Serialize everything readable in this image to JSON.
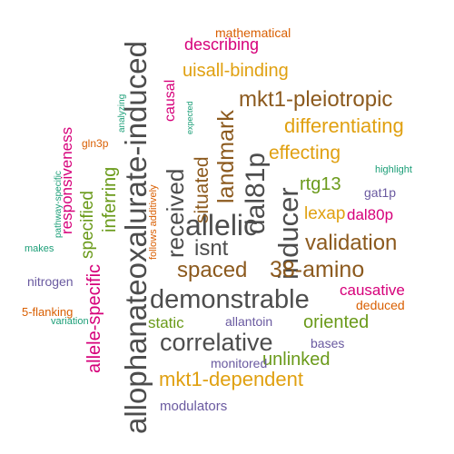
{
  "words": [
    {
      "text": "allophanateoxalurate-induced",
      "color": "#4d4d4d",
      "orientation": "vertical"
    },
    {
      "text": "demonstrable",
      "color": "#4d4d4d",
      "orientation": "horizontal"
    },
    {
      "text": "correlative",
      "color": "#4d4d4d",
      "orientation": "horizontal"
    },
    {
      "text": "inducer",
      "color": "#4d4d4d",
      "orientation": "vertical"
    },
    {
      "text": "allelic",
      "color": "#4d4d4d",
      "orientation": "horizontal"
    },
    {
      "text": "isnt",
      "color": "#4d4d4d",
      "orientation": "horizontal"
    },
    {
      "text": "dal81p",
      "color": "#4d4d4d",
      "orientation": "vertical"
    },
    {
      "text": "received",
      "color": "#4d4d4d",
      "orientation": "vertical"
    },
    {
      "text": "38-amino",
      "color": "#8c5a1e",
      "orientation": "horizontal"
    },
    {
      "text": "landmark",
      "color": "#8c5a1e",
      "orientation": "vertical"
    },
    {
      "text": "spaced",
      "color": "#8c5a1e",
      "orientation": "horizontal"
    },
    {
      "text": "validation",
      "color": "#8c5a1e",
      "orientation": "horizontal"
    },
    {
      "text": "situated",
      "color": "#8c5a1e",
      "orientation": "vertical"
    },
    {
      "text": "mkt1-pleiotropic",
      "color": "#8c5a1e",
      "orientation": "horizontal"
    },
    {
      "text": "mkt1-dependent",
      "color": "#e0a010",
      "orientation": "horizontal"
    },
    {
      "text": "differentiating",
      "color": "#e0a010",
      "orientation": "horizontal"
    },
    {
      "text": "effecting",
      "color": "#e0a010",
      "orientation": "horizontal"
    },
    {
      "text": "uisall-binding",
      "color": "#e0a010",
      "orientation": "horizontal"
    },
    {
      "text": "lexap",
      "color": "#e0a010",
      "orientation": "horizontal"
    },
    {
      "text": "allele-specific",
      "color": "#d6007a",
      "orientation": "vertical"
    },
    {
      "text": "inferring",
      "color": "#6a9a1a",
      "orientation": "vertical"
    },
    {
      "text": "specified",
      "color": "#6a9a1a",
      "orientation": "vertical"
    },
    {
      "text": "responsiveness",
      "color": "#d6007a",
      "orientation": "vertical"
    },
    {
      "text": "causal",
      "color": "#d6007a",
      "orientation": "vertical"
    },
    {
      "text": "describing",
      "color": "#d6007a",
      "orientation": "horizontal"
    },
    {
      "text": "causative",
      "color": "#d6007a",
      "orientation": "horizontal"
    },
    {
      "text": "dal80p",
      "color": "#d6007a",
      "orientation": "horizontal"
    },
    {
      "text": "oriented",
      "color": "#6a9a1a",
      "orientation": "horizontal"
    },
    {
      "text": "unlinked",
      "color": "#6a9a1a",
      "orientation": "horizontal"
    },
    {
      "text": "rtg13",
      "color": "#6a9a1a",
      "orientation": "horizontal"
    },
    {
      "text": "static",
      "color": "#6a9a1a",
      "orientation": "horizontal"
    },
    {
      "text": "modulators",
      "color": "#6a5aa0",
      "orientation": "horizontal"
    },
    {
      "text": "nitrogen",
      "color": "#6a5aa0",
      "orientation": "horizontal"
    },
    {
      "text": "allantoin",
      "color": "#6a5aa0",
      "orientation": "horizontal"
    },
    {
      "text": "monitored",
      "color": "#6a5aa0",
      "orientation": "horizontal"
    },
    {
      "text": "bases",
      "color": "#6a5aa0",
      "orientation": "horizontal"
    },
    {
      "text": "gat1p",
      "color": "#6a5aa0",
      "orientation": "horizontal"
    },
    {
      "text": "mathematical",
      "color": "#d95f02",
      "orientation": "horizontal"
    },
    {
      "text": "deduced",
      "color": "#d95f02",
      "orientation": "horizontal"
    },
    {
      "text": "5-flanking",
      "color": "#d95f02",
      "orientation": "horizontal"
    },
    {
      "text": "gln3p",
      "color": "#d95f02",
      "orientation": "horizontal"
    },
    {
      "text": "follows additively",
      "color": "#d95f02",
      "orientation": "vertical"
    },
    {
      "text": "highlight",
      "color": "#1b9e77",
      "orientation": "horizontal"
    },
    {
      "text": "makes",
      "color": "#1b9e77",
      "orientation": "horizontal"
    },
    {
      "text": "variation",
      "color": "#1b9e77",
      "orientation": "horizontal"
    },
    {
      "text": "pathway-specific",
      "color": "#1b9e77",
      "orientation": "vertical"
    },
    {
      "text": "analyzing",
      "color": "#1b9e77",
      "orientation": "vertical"
    },
    {
      "text": "expected",
      "color": "#1b9e77",
      "orientation": "vertical"
    }
  ]
}
